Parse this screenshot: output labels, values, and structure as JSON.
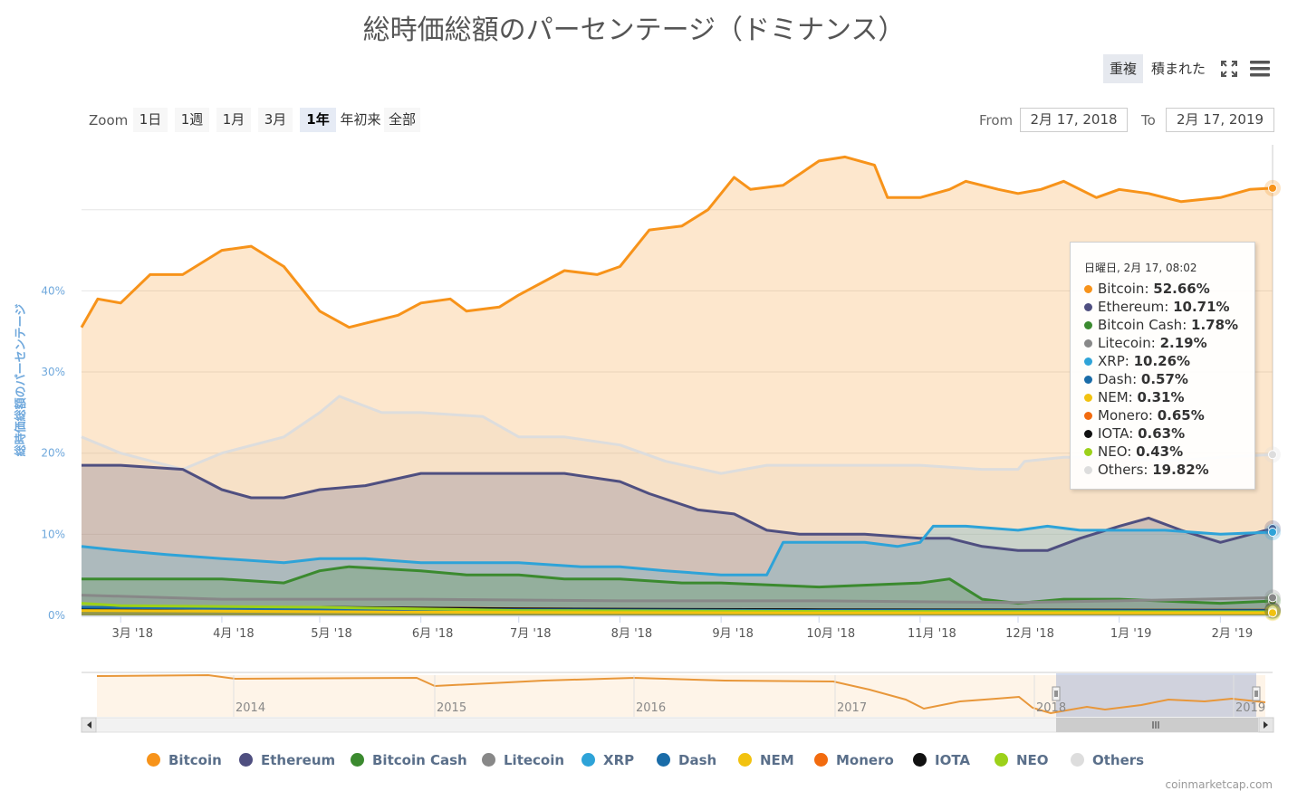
{
  "title": "総時価総額のパーセンテージ（ドミナンス）",
  "stack_toggle": {
    "overlap": "重複",
    "stacked": "積まれた"
  },
  "icons": {
    "fullscreen": "fullscreen-icon",
    "menu": "hamburger-menu-icon"
  },
  "range_selector": {
    "zoom_label": "Zoom",
    "buttons": [
      "1日",
      "1週",
      "1月",
      "3月",
      "1年",
      "年初来",
      "全部"
    ],
    "selected": "1年",
    "from_label": "From",
    "from_value": "2月 17, 2018",
    "to_label": "To",
    "to_value": "2月 17, 2019"
  },
  "tooltip": {
    "header": "日曜日, 2月 17, 08:02",
    "rows": [
      {
        "name": "Bitcoin",
        "value": "52.66%",
        "color": "#f7931a"
      },
      {
        "name": "Ethereum",
        "value": "10.71%",
        "color": "#4f4f80"
      },
      {
        "name": "Bitcoin Cash",
        "value": "1.78%",
        "color": "#3b8a2f"
      },
      {
        "name": "Litecoin",
        "value": "2.19%",
        "color": "#888888"
      },
      {
        "name": "XRP",
        "value": "10.26%",
        "color": "#2ea3d8"
      },
      {
        "name": "Dash",
        "value": "0.57%",
        "color": "#1a6ca8"
      },
      {
        "name": "NEM",
        "value": "0.31%",
        "color": "#f2c20f"
      },
      {
        "name": "Monero",
        "value": "0.65%",
        "color": "#f26b0f"
      },
      {
        "name": "IOTA",
        "value": "0.63%",
        "color": "#111111"
      },
      {
        "name": "NEO",
        "value": "0.43%",
        "color": "#9cd11a"
      },
      {
        "name": "Others",
        "value": "19.82%",
        "color": "#dddddd"
      }
    ]
  },
  "credits": "coinmarketcap.com",
  "chart_data": {
    "type": "area",
    "title": "総時価総額のパーセンテージ（ドミナンス）",
    "ylabel": "総時価総額のパーセンテージ",
    "ylim": [
      0,
      58
    ],
    "yticks": [
      0,
      10,
      20,
      30,
      40
    ],
    "ytick_labels": [
      "0%",
      "10%",
      "20%",
      "30%",
      "40%"
    ],
    "x_range": [
      "2018-02-17",
      "2019-02-17"
    ],
    "x_ticks": [
      "2018-03-01",
      "2018-04-01",
      "2018-05-01",
      "2018-06-01",
      "2018-07-01",
      "2018-08-01",
      "2018-09-01",
      "2018-10-01",
      "2018-11-01",
      "2018-12-01",
      "2019-01-01",
      "2019-02-01"
    ],
    "x_tick_labels": [
      "3月 '18",
      "4月 '18",
      "5月 '18",
      "6月 '18",
      "7月 '18",
      "8月 '18",
      "9月 '18",
      "10月 '18",
      "11月 '18",
      "12月 '18",
      "1月 '19",
      "2月 '19"
    ],
    "grid": true,
    "legend_position": "bottom",
    "series": [
      {
        "name": "Others",
        "color": "#dddddd",
        "points": [
          [
            "2018-02-17",
            22
          ],
          [
            "2018-03-01",
            20
          ],
          [
            "2018-03-20",
            18
          ],
          [
            "2018-04-01",
            20
          ],
          [
            "2018-04-20",
            22
          ],
          [
            "2018-05-01",
            25
          ],
          [
            "2018-05-07",
            27
          ],
          [
            "2018-05-20",
            25
          ],
          [
            "2018-06-01",
            25
          ],
          [
            "2018-06-20",
            24.5
          ],
          [
            "2018-07-01",
            22
          ],
          [
            "2018-07-15",
            22
          ],
          [
            "2018-08-01",
            21
          ],
          [
            "2018-08-15",
            19
          ],
          [
            "2018-09-01",
            17.5
          ],
          [
            "2018-09-15",
            18.5
          ],
          [
            "2018-10-01",
            18.5
          ],
          [
            "2018-11-01",
            18.5
          ],
          [
            "2018-11-20",
            18
          ],
          [
            "2018-12-01",
            18
          ],
          [
            "2018-12-03",
            19
          ],
          [
            "2018-12-15",
            19.5
          ],
          [
            "2019-01-01",
            19.5
          ],
          [
            "2019-01-15",
            19
          ],
          [
            "2019-02-01",
            19.5
          ],
          [
            "2019-02-17",
            19.82
          ]
        ]
      },
      {
        "name": "Bitcoin",
        "color": "#f7931a",
        "points": [
          [
            "2018-02-17",
            35.5
          ],
          [
            "2018-02-22",
            39
          ],
          [
            "2018-03-01",
            38.5
          ],
          [
            "2018-03-10",
            42
          ],
          [
            "2018-03-20",
            42
          ],
          [
            "2018-04-01",
            45
          ],
          [
            "2018-04-10",
            45.5
          ],
          [
            "2018-04-20",
            43
          ],
          [
            "2018-05-01",
            37.5
          ],
          [
            "2018-05-10",
            35.5
          ],
          [
            "2018-05-15",
            36
          ],
          [
            "2018-05-25",
            37
          ],
          [
            "2018-06-01",
            38.5
          ],
          [
            "2018-06-10",
            39
          ],
          [
            "2018-06-15",
            37.5
          ],
          [
            "2018-06-25",
            38
          ],
          [
            "2018-07-01",
            39.5
          ],
          [
            "2018-07-15",
            42.5
          ],
          [
            "2018-07-25",
            42
          ],
          [
            "2018-08-01",
            43
          ],
          [
            "2018-08-10",
            47.5
          ],
          [
            "2018-08-20",
            48
          ],
          [
            "2018-08-28",
            50
          ],
          [
            "2018-09-05",
            54
          ],
          [
            "2018-09-10",
            52.5
          ],
          [
            "2018-09-20",
            53
          ],
          [
            "2018-10-01",
            56
          ],
          [
            "2018-10-09",
            56.5
          ],
          [
            "2018-10-18",
            55.5
          ],
          [
            "2018-10-22",
            51.5
          ],
          [
            "2018-11-01",
            51.5
          ],
          [
            "2018-11-10",
            52.5
          ],
          [
            "2018-11-15",
            53.5
          ],
          [
            "2018-11-25",
            52.5
          ],
          [
            "2018-12-01",
            52
          ],
          [
            "2018-12-08",
            52.5
          ],
          [
            "2018-12-15",
            53.5
          ],
          [
            "2018-12-25",
            51.5
          ],
          [
            "2019-01-01",
            52.5
          ],
          [
            "2019-01-10",
            52
          ],
          [
            "2019-01-20",
            51
          ],
          [
            "2019-02-01",
            51.5
          ],
          [
            "2019-02-10",
            52.5
          ],
          [
            "2019-02-17",
            52.66
          ]
        ]
      },
      {
        "name": "Ethereum",
        "color": "#4f4f80",
        "points": [
          [
            "2018-02-17",
            18.5
          ],
          [
            "2018-03-01",
            18.5
          ],
          [
            "2018-03-20",
            18
          ],
          [
            "2018-04-01",
            15.5
          ],
          [
            "2018-04-10",
            14.5
          ],
          [
            "2018-04-20",
            14.5
          ],
          [
            "2018-05-01",
            15.5
          ],
          [
            "2018-05-15",
            16
          ],
          [
            "2018-06-01",
            17.5
          ],
          [
            "2018-06-15",
            17.5
          ],
          [
            "2018-07-01",
            17.5
          ],
          [
            "2018-07-15",
            17.5
          ],
          [
            "2018-08-01",
            16.5
          ],
          [
            "2018-08-10",
            15
          ],
          [
            "2018-08-25",
            13
          ],
          [
            "2018-09-05",
            12.5
          ],
          [
            "2018-09-15",
            10.5
          ],
          [
            "2018-09-25",
            10
          ],
          [
            "2018-10-01",
            10
          ],
          [
            "2018-10-15",
            10
          ],
          [
            "2018-11-01",
            9.5
          ],
          [
            "2018-11-10",
            9.5
          ],
          [
            "2018-11-20",
            8.5
          ],
          [
            "2018-12-01",
            8
          ],
          [
            "2018-12-10",
            8
          ],
          [
            "2018-12-20",
            9.5
          ],
          [
            "2019-01-01",
            11
          ],
          [
            "2019-01-10",
            12
          ],
          [
            "2019-01-20",
            10.5
          ],
          [
            "2019-02-01",
            9
          ],
          [
            "2019-02-17",
            10.71
          ]
        ]
      },
      {
        "name": "XRP",
        "color": "#2ea3d8",
        "points": [
          [
            "2018-02-17",
            8.5
          ],
          [
            "2018-03-01",
            8
          ],
          [
            "2018-03-15",
            7.5
          ],
          [
            "2018-04-01",
            7
          ],
          [
            "2018-04-20",
            6.5
          ],
          [
            "2018-05-01",
            7
          ],
          [
            "2018-05-15",
            7
          ],
          [
            "2018-06-01",
            6.5
          ],
          [
            "2018-06-20",
            6.5
          ],
          [
            "2018-07-01",
            6.5
          ],
          [
            "2018-07-20",
            6
          ],
          [
            "2018-08-01",
            6
          ],
          [
            "2018-08-15",
            5.5
          ],
          [
            "2018-09-01",
            5
          ],
          [
            "2018-09-15",
            5
          ],
          [
            "2018-09-20",
            9
          ],
          [
            "2018-10-01",
            9
          ],
          [
            "2018-10-15",
            9
          ],
          [
            "2018-10-25",
            8.5
          ],
          [
            "2018-11-01",
            9
          ],
          [
            "2018-11-05",
            11
          ],
          [
            "2018-11-15",
            11
          ],
          [
            "2018-12-01",
            10.5
          ],
          [
            "2018-12-10",
            11
          ],
          [
            "2018-12-20",
            10.5
          ],
          [
            "2019-01-01",
            10.5
          ],
          [
            "2019-01-15",
            10.5
          ],
          [
            "2019-02-01",
            10
          ],
          [
            "2019-02-17",
            10.26
          ]
        ]
      },
      {
        "name": "Bitcoin Cash",
        "color": "#3b8a2f",
        "points": [
          [
            "2018-02-17",
            4.5
          ],
          [
            "2018-03-01",
            4.5
          ],
          [
            "2018-04-01",
            4.5
          ],
          [
            "2018-04-20",
            4
          ],
          [
            "2018-05-01",
            5.5
          ],
          [
            "2018-05-10",
            6
          ],
          [
            "2018-06-01",
            5.5
          ],
          [
            "2018-06-15",
            5
          ],
          [
            "2018-07-01",
            5
          ],
          [
            "2018-07-15",
            4.5
          ],
          [
            "2018-08-01",
            4.5
          ],
          [
            "2018-08-20",
            4
          ],
          [
            "2018-09-01",
            4
          ],
          [
            "2018-10-01",
            3.5
          ],
          [
            "2018-11-01",
            4
          ],
          [
            "2018-11-10",
            4.5
          ],
          [
            "2018-11-20",
            2
          ],
          [
            "2018-12-01",
            1.5
          ],
          [
            "2018-12-15",
            2
          ],
          [
            "2019-01-01",
            2
          ],
          [
            "2019-02-01",
            1.5
          ],
          [
            "2019-02-17",
            1.78
          ]
        ]
      },
      {
        "name": "Litecoin",
        "color": "#888888",
        "points": [
          [
            "2018-02-17",
            2.5
          ],
          [
            "2018-04-01",
            2
          ],
          [
            "2018-06-01",
            2
          ],
          [
            "2018-08-01",
            1.8
          ],
          [
            "2018-10-01",
            1.8
          ],
          [
            "2018-12-01",
            1.6
          ],
          [
            "2019-01-01",
            1.8
          ],
          [
            "2019-02-17",
            2.19
          ]
        ]
      },
      {
        "name": "Monero",
        "color": "#f26b0f",
        "points": [
          [
            "2018-02-17",
            0.9
          ],
          [
            "2018-06-01",
            0.9
          ],
          [
            "2018-10-01",
            0.6
          ],
          [
            "2019-02-17",
            0.65
          ]
        ]
      },
      {
        "name": "IOTA",
        "color": "#111111",
        "points": [
          [
            "2018-02-17",
            0.8
          ],
          [
            "2018-05-01",
            1.0
          ],
          [
            "2018-07-01",
            0.8
          ],
          [
            "2018-10-01",
            0.7
          ],
          [
            "2019-02-17",
            0.63
          ]
        ]
      },
      {
        "name": "Dash",
        "color": "#1a6ca8",
        "points": [
          [
            "2018-02-17",
            1.0
          ],
          [
            "2018-06-01",
            0.7
          ],
          [
            "2018-10-01",
            0.6
          ],
          [
            "2019-02-17",
            0.57
          ]
        ]
      },
      {
        "name": "NEO",
        "color": "#9cd11a",
        "points": [
          [
            "2018-02-17",
            1.5
          ],
          [
            "2018-03-01",
            1.2
          ],
          [
            "2018-05-01",
            1.0
          ],
          [
            "2018-07-01",
            0.6
          ],
          [
            "2018-10-01",
            0.5
          ],
          [
            "2019-02-17",
            0.43
          ]
        ]
      },
      {
        "name": "NEM",
        "color": "#f2c20f",
        "points": [
          [
            "2018-02-17",
            0.6
          ],
          [
            "2018-06-01",
            0.4
          ],
          [
            "2018-10-01",
            0.3
          ],
          [
            "2019-02-17",
            0.31
          ]
        ]
      }
    ],
    "navigator": {
      "x_tick_labels": [
        "2014",
        "2015",
        "2016",
        "2017",
        "2018",
        "2019"
      ],
      "selected_range": [
        "2018-02-17",
        "2019-02-17"
      ]
    }
  },
  "legend": [
    "Bitcoin",
    "Ethereum",
    "Bitcoin Cash",
    "Litecoin",
    "XRP",
    "Dash",
    "NEM",
    "Monero",
    "IOTA",
    "NEO",
    "Others"
  ]
}
